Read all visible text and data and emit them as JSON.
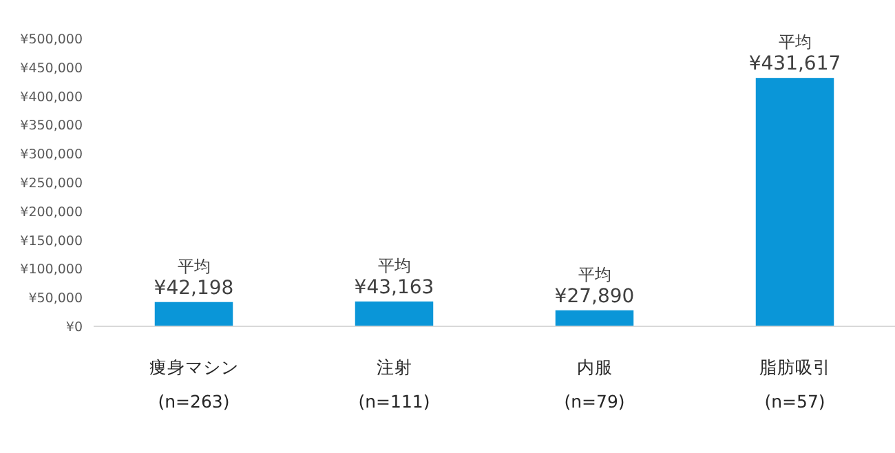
{
  "chart_data": {
    "type": "bar",
    "categories": [
      "痩身マシン\n(n=263)",
      "注射\n(n=111)",
      "内服\n(n=79)",
      "脂肪吸引\n(n=57)"
    ],
    "values": [
      42198,
      43163,
      27890,
      431617
    ],
    "value_labels": [
      "平均\n¥42,198",
      "平均\n¥43,163",
      "平均\n¥27,890",
      "平均\n¥431,617"
    ],
    "color": "#0a96d8",
    "ylim": [
      0,
      500000
    ],
    "yticks": [
      {
        "value": 0,
        "label": "¥0"
      },
      {
        "value": 50000,
        "label": "¥50,000"
      },
      {
        "value": 100000,
        "label": "¥100,000"
      },
      {
        "value": 150000,
        "label": "¥150,000"
      },
      {
        "value": 200000,
        "label": "¥200,000"
      },
      {
        "value": 250000,
        "label": "¥250,000"
      },
      {
        "value": 300000,
        "label": "¥300,000"
      },
      {
        "value": 350000,
        "label": "¥350,000"
      },
      {
        "value": 400000,
        "label": "¥400,000"
      },
      {
        "value": 450000,
        "label": "¥450,000"
      },
      {
        "value": 500000,
        "label": "¥500,000"
      }
    ],
    "grid": false
  }
}
